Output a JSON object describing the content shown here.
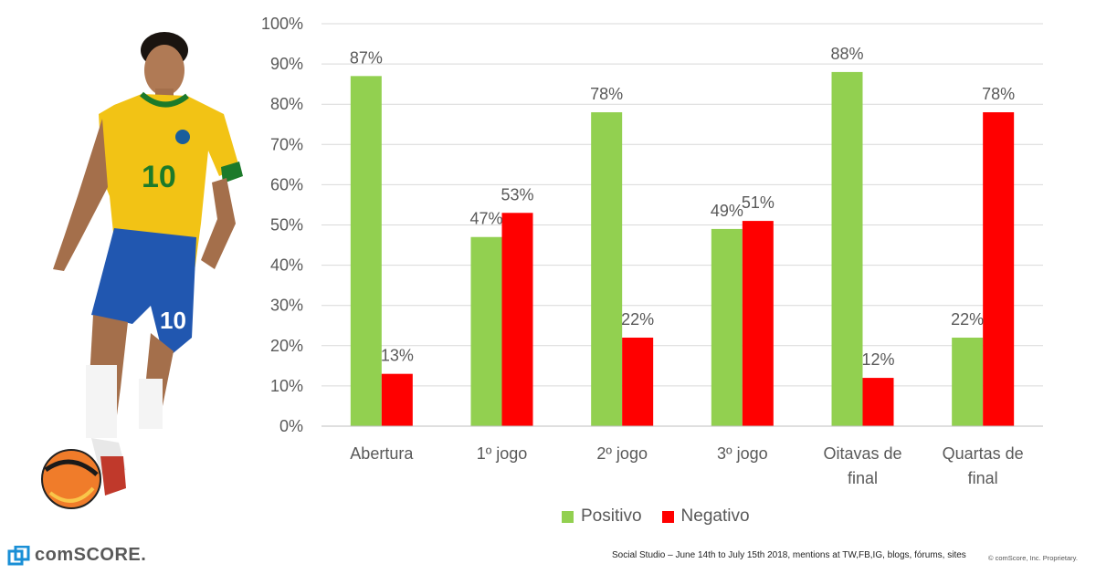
{
  "chart_data": {
    "type": "bar",
    "categories": [
      [
        "Abertura"
      ],
      [
        "1º jogo"
      ],
      [
        "2º jogo"
      ],
      [
        "3º jogo"
      ],
      [
        "Oitavas de",
        "final"
      ],
      [
        "Quartas de",
        "final"
      ]
    ],
    "series": [
      {
        "name": "Positivo",
        "color": "#92D050",
        "values": [
          87,
          47,
          78,
          49,
          88,
          22
        ]
      },
      {
        "name": "Negativo",
        "color": "#FF0000",
        "values": [
          13,
          53,
          22,
          51,
          12,
          78
        ]
      }
    ],
    "ylim": [
      0,
      100
    ],
    "yticks": [
      "0%",
      "10%",
      "20%",
      "30%",
      "40%",
      "50%",
      "60%",
      "70%",
      "80%",
      "90%",
      "100%"
    ],
    "grid": true,
    "legend_position": "bottom",
    "value_suffix": "%"
  },
  "footer": {
    "source": "Social Studio – June 14th to July 15th 2018, mentions at TW,FB,IG, blogs, fórums, sites",
    "copyright": "© comScore, Inc. Proprietary.",
    "logo_text": "comSCORE."
  }
}
